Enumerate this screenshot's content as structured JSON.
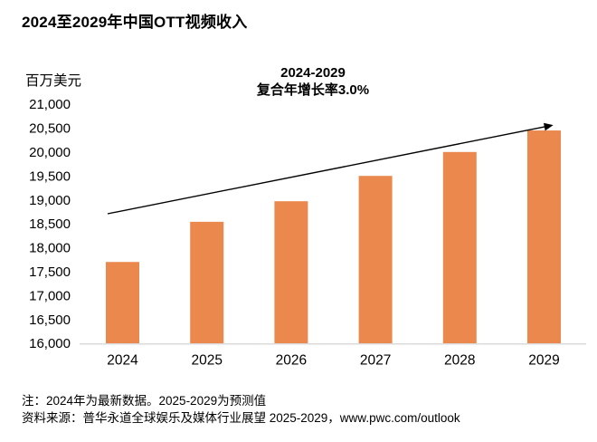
{
  "title": "2024至2029年中国OTT视频收入",
  "chart_data": {
    "type": "bar",
    "title": "2024至2029年中国OTT视频收入",
    "categories": [
      "2024",
      "2025",
      "2026",
      "2027",
      "2028",
      "2029"
    ],
    "values": [
      17700,
      18540,
      18970,
      19500,
      20000,
      20450
    ],
    "xlabel": "",
    "ylabel": "百万美元",
    "ylim": [
      16000,
      21000
    ],
    "ytick_step": 500,
    "yticks": [
      "21,000",
      "20,500",
      "20,000",
      "19,500",
      "19,000",
      "18,500",
      "18,000",
      "17,500",
      "17,000",
      "16,500",
      "16,000"
    ],
    "bar_color": "#EB884E",
    "axis_line_color": "#DBDBDB",
    "grid": false,
    "legend": false,
    "annotation": {
      "line1": "2024-2029",
      "line2": "复合年增长率3.0%"
    },
    "trend_arrow": true
  },
  "notes": {
    "line1": "注：2024年为最新数据。2025-2029为预测值",
    "line2": "资料来源：普华永道全球娱乐及媒体行业展望 2025-2029，www.pwc.com/outlook"
  }
}
